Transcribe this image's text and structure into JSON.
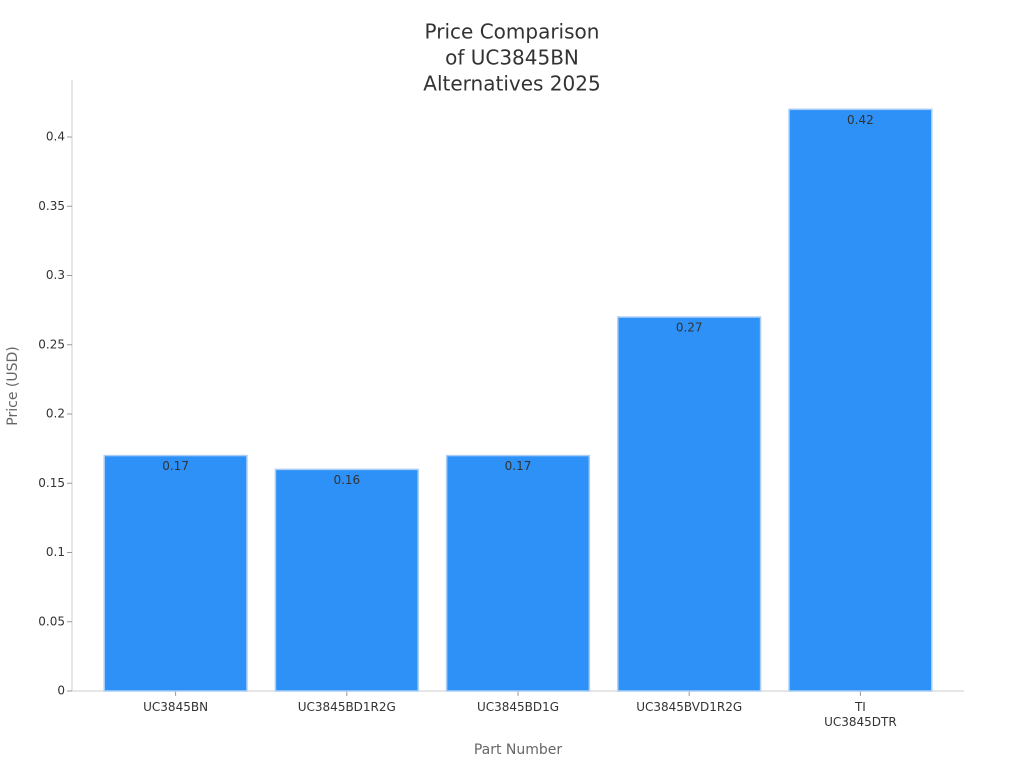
{
  "chart_data": {
    "type": "bar",
    "title": [
      "Price Comparison",
      "of UC3845BN",
      "Alternatives 2025"
    ],
    "x_label": "Part Number",
    "y_label": "Price (USD)",
    "categories": [
      "UC3845BN",
      "UC3845BD1R2G",
      "UC3845BD1G",
      "UC3845BVD1R2G",
      "TI UC3845DTR"
    ],
    "values": [
      0.17,
      0.16,
      0.17,
      0.27,
      0.42
    ],
    "color": "#2e91f7",
    "ylim": [
      0,
      0.44
    ],
    "yticks": [
      0,
      0.05,
      0.1,
      0.15,
      0.2,
      0.25,
      0.3,
      0.35,
      0.4
    ],
    "grid": false
  }
}
